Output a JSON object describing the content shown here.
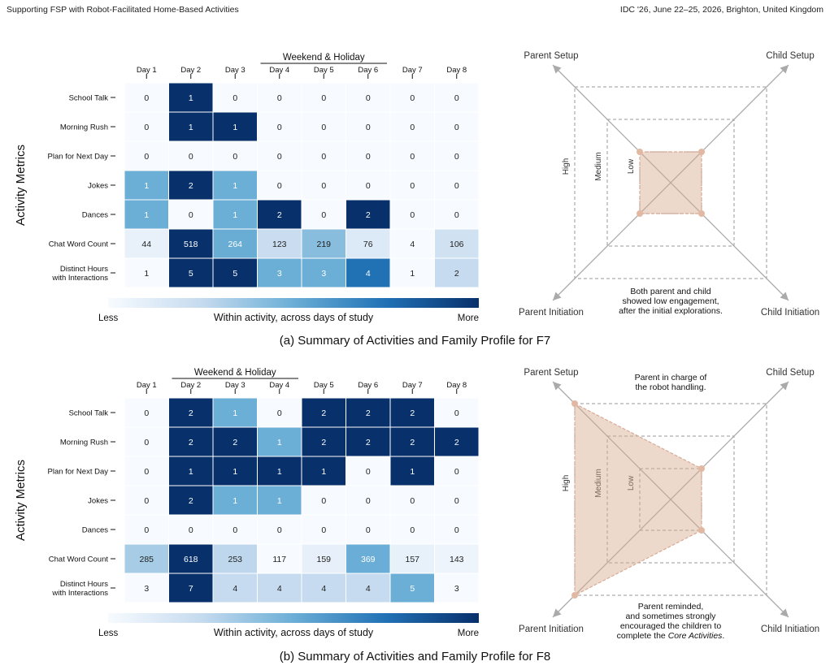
{
  "header": {
    "left": "Supporting FSP with Robot-Facilitated Home-Based Activities",
    "right": "IDC '26, June 22–25, 2026, Brighton, United Kingdom"
  },
  "colors": {
    "low": "#f7fbff",
    "high": "#08306b",
    "radar_fill": "#e6c7b6",
    "radar_stroke": "#d8a995",
    "axis": "#aaaaaa"
  },
  "chart_data": [
    {
      "type": "heatmap",
      "caption": "(a) Summary of Activities and Family Profile for F7",
      "ylabel": "Activity Metrics",
      "days": [
        "Day 1",
        "Day 2",
        "Day 3",
        "Day 4",
        "Day 5",
        "Day 6",
        "Day 7",
        "Day 8"
      ],
      "weekend_label": "Weekend & Holiday",
      "weekend_days": [
        "Day 4",
        "Day 5",
        "Day 6"
      ],
      "rows": [
        {
          "label": "School Talk",
          "values": [
            0,
            1,
            0,
            0,
            0,
            0,
            0,
            0
          ]
        },
        {
          "label": "Morning Rush",
          "values": [
            0,
            1,
            1,
            0,
            0,
            0,
            0,
            0
          ]
        },
        {
          "label": "Plan for Next Day",
          "values": [
            0,
            0,
            0,
            0,
            0,
            0,
            0,
            0
          ]
        },
        {
          "label": "Jokes",
          "values": [
            1,
            2,
            1,
            0,
            0,
            0,
            0,
            0
          ]
        },
        {
          "label": "Dances",
          "values": [
            1,
            0,
            1,
            2,
            0,
            2,
            0,
            0
          ]
        },
        {
          "label": "Chat Word Count",
          "values": [
            44,
            518,
            264,
            123,
            219,
            76,
            4,
            106
          ]
        },
        {
          "label": "Distinct Hours\nwith Interactions",
          "values": [
            1,
            5,
            5,
            3,
            3,
            4,
            1,
            2
          ]
        }
      ],
      "colorbar": {
        "min_label": "Less",
        "max_label": "More",
        "label": "Within activity, across days of study"
      }
    },
    {
      "type": "radar",
      "axes": [
        "Parent Setup",
        "Child Setup",
        "Child Initiation",
        "Parent Initiation"
      ],
      "levels": [
        "Low",
        "Medium",
        "High"
      ],
      "values": {
        "Parent Setup": "Low",
        "Child Setup": "Low",
        "Child Initiation": "Low",
        "Parent Initiation": "Low"
      },
      "annotations": [
        {
          "position": "bottom",
          "lines": [
            "Both parent and child",
            "showed low engagement,",
            "after the initial explorations."
          ]
        }
      ]
    },
    {
      "type": "heatmap",
      "caption": "(b) Summary of Activities and Family Profile for F8",
      "ylabel": "Activity Metrics",
      "days": [
        "Day 1",
        "Day 2",
        "Day 3",
        "Day 4",
        "Day 5",
        "Day 6",
        "Day 7",
        "Day 8"
      ],
      "weekend_label": "Weekend & Holiday",
      "weekend_days": [
        "Day 2",
        "Day 3",
        "Day 4"
      ],
      "rows": [
        {
          "label": "School Talk",
          "values": [
            0,
            2,
            1,
            0,
            2,
            2,
            2,
            0
          ]
        },
        {
          "label": "Morning Rush",
          "values": [
            0,
            2,
            2,
            1,
            2,
            2,
            2,
            2
          ]
        },
        {
          "label": "Plan for Next Day",
          "values": [
            0,
            1,
            1,
            1,
            1,
            0,
            1,
            0
          ]
        },
        {
          "label": "Jokes",
          "values": [
            0,
            2,
            1,
            1,
            0,
            0,
            0,
            0
          ]
        },
        {
          "label": "Dances",
          "values": [
            0,
            0,
            0,
            0,
            0,
            0,
            0,
            0
          ]
        },
        {
          "label": "Chat Word Count",
          "values": [
            285,
            618,
            253,
            117,
            159,
            369,
            157,
            143
          ]
        },
        {
          "label": "Distinct Hours\nwith Interactions",
          "values": [
            3,
            7,
            4,
            4,
            4,
            4,
            5,
            3
          ]
        }
      ],
      "colorbar": {
        "min_label": "Less",
        "max_label": "More",
        "label": "Within activity, across days of study"
      }
    },
    {
      "type": "radar",
      "axes": [
        "Parent Setup",
        "Child Setup",
        "Child Initiation",
        "Parent Initiation"
      ],
      "levels": [
        "Low",
        "Medium",
        "High"
      ],
      "values": {
        "Parent Setup": "High",
        "Child Setup": "Low",
        "Child Initiation": "Low",
        "Parent Initiation": "High"
      },
      "annotations": [
        {
          "position": "top",
          "lines": [
            "Parent in charge of",
            "the robot handling."
          ]
        },
        {
          "position": "bottom",
          "lines": [
            "Parent reminded,",
            "and sometimes strongly",
            "encouraged the children to",
            "complete the ",
            "Core Activities",
            "."
          ]
        }
      ]
    }
  ]
}
